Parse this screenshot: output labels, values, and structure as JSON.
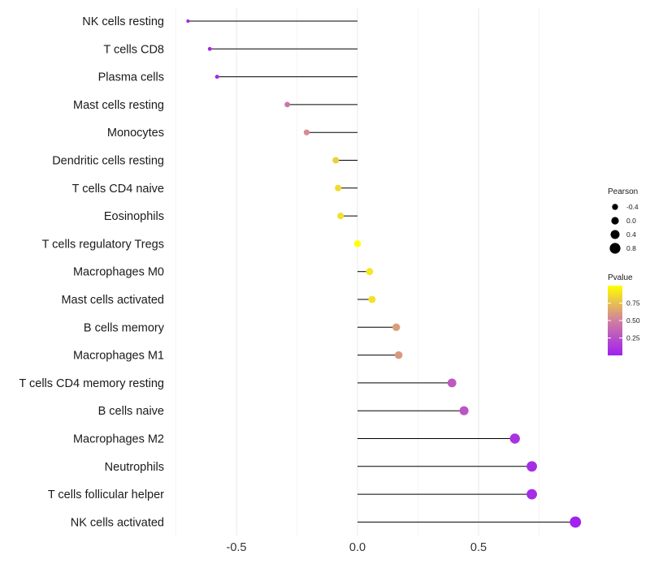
{
  "chart_data": {
    "type": "lollipop",
    "title": "",
    "xlabel": "",
    "ylabel": "",
    "xlim": [
      -0.75,
      0.92
    ],
    "x_ticks": [
      {
        "value": -0.5,
        "label": "-0.5"
      },
      {
        "value": 0.0,
        "label": "0.0"
      },
      {
        "value": 0.5,
        "label": "0.5"
      }
    ],
    "grid": true,
    "categories": [
      "NK cells resting",
      "T cells CD8",
      "Plasma cells",
      "Mast cells resting",
      "Monocytes",
      "Dendritic cells resting",
      "T cells CD4 naive",
      "Eosinophils",
      "T cells regulatory  Tregs ",
      "Macrophages M0",
      "Mast cells activated",
      "B cells memory",
      "Macrophages M1",
      "T cells CD4 memory resting",
      "B cells naive",
      "Macrophages M2",
      "Neutrophils",
      "T cells follicular helper",
      "NK cells activated"
    ],
    "pearson": [
      -0.7,
      -0.61,
      -0.58,
      -0.29,
      -0.21,
      -0.09,
      -0.08,
      -0.07,
      0.0,
      0.05,
      0.06,
      0.16,
      0.17,
      0.39,
      0.44,
      0.65,
      0.72,
      0.72,
      0.9
    ],
    "pvalue": [
      0.02,
      0.03,
      0.05,
      0.45,
      0.55,
      0.82,
      0.85,
      0.88,
      1.0,
      0.9,
      0.88,
      0.62,
      0.6,
      0.3,
      0.28,
      0.1,
      0.06,
      0.06,
      0.01
    ],
    "legend_size": {
      "title": "Pearson",
      "labels": [
        "-0.4",
        "0.0",
        "0.4",
        "0.8"
      ],
      "values": [
        -0.4,
        0.0,
        0.4,
        0.8
      ]
    },
    "legend_color": {
      "title": "Pvalue",
      "labels": [
        "0.75",
        "0.50",
        "0.25"
      ],
      "values": [
        0.75,
        0.5,
        0.25
      ],
      "range": [
        0.0,
        1.0
      ],
      "low_color": "#a020f0",
      "mid_color": "#d080a0",
      "high_color": "#ffff00"
    },
    "legend_position": "right"
  }
}
